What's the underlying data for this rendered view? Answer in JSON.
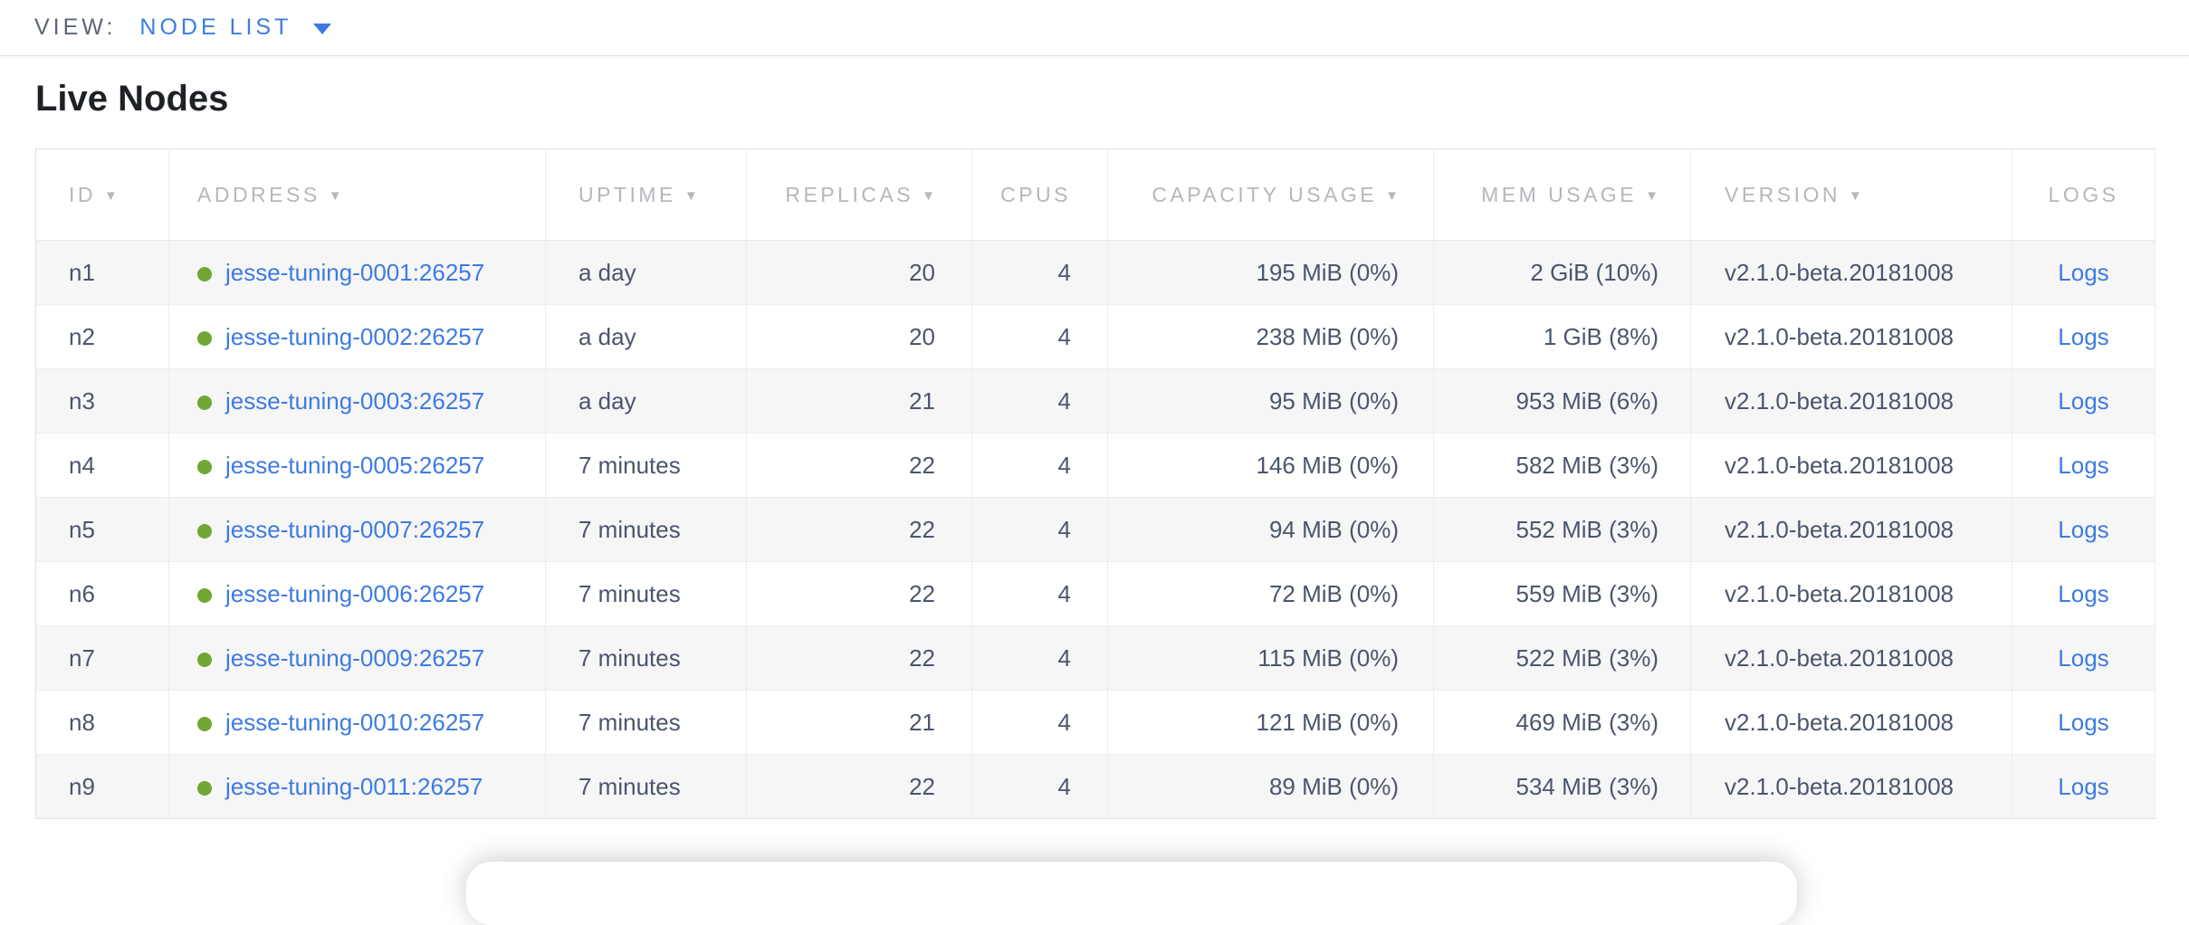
{
  "view_bar": {
    "label": "VIEW:",
    "selected_view": "NODE LIST"
  },
  "page": {
    "title": "Live Nodes"
  },
  "icons": {
    "sort_desc": "▼",
    "dropdown_caret": "▼",
    "node_status": "green-dot"
  },
  "colors": {
    "accent_blue": "#3d7be2",
    "status_green": "#71a634",
    "header_gray": "#b4b7bc",
    "body_text": "#4b556c",
    "stripe_bg": "#f6f6f7"
  },
  "table": {
    "columns": [
      {
        "key": "id",
        "label": "ID",
        "sortable": true,
        "align": "left"
      },
      {
        "key": "address",
        "label": "ADDRESS",
        "sortable": true,
        "align": "left"
      },
      {
        "key": "uptime",
        "label": "UPTIME",
        "sortable": true,
        "align": "left"
      },
      {
        "key": "replicas",
        "label": "REPLICAS",
        "sortable": true,
        "align": "right"
      },
      {
        "key": "cpus",
        "label": "CPUS",
        "sortable": false,
        "align": "right"
      },
      {
        "key": "capacity",
        "label": "CAPACITY USAGE",
        "sortable": true,
        "align": "right"
      },
      {
        "key": "mem",
        "label": "MEM USAGE",
        "sortable": true,
        "align": "right"
      },
      {
        "key": "version",
        "label": "VERSION",
        "sortable": true,
        "align": "left"
      },
      {
        "key": "logs",
        "label": "LOGS",
        "sortable": false,
        "align": "center"
      }
    ],
    "rows": [
      {
        "id": "n1",
        "address": "jesse-tuning-0001:26257",
        "uptime": "a day",
        "replicas": "20",
        "cpus": "4",
        "capacity": "195 MiB (0%)",
        "mem": "2 GiB (10%)",
        "version": "v2.1.0-beta.20181008",
        "logs": "Logs"
      },
      {
        "id": "n2",
        "address": "jesse-tuning-0002:26257",
        "uptime": "a day",
        "replicas": "20",
        "cpus": "4",
        "capacity": "238 MiB (0%)",
        "mem": "1 GiB (8%)",
        "version": "v2.1.0-beta.20181008",
        "logs": "Logs"
      },
      {
        "id": "n3",
        "address": "jesse-tuning-0003:26257",
        "uptime": "a day",
        "replicas": "21",
        "cpus": "4",
        "capacity": "95 MiB (0%)",
        "mem": "953 MiB (6%)",
        "version": "v2.1.0-beta.20181008",
        "logs": "Logs"
      },
      {
        "id": "n4",
        "address": "jesse-tuning-0005:26257",
        "uptime": "7 minutes",
        "replicas": "22",
        "cpus": "4",
        "capacity": "146 MiB (0%)",
        "mem": "582 MiB (3%)",
        "version": "v2.1.0-beta.20181008",
        "logs": "Logs"
      },
      {
        "id": "n5",
        "address": "jesse-tuning-0007:26257",
        "uptime": "7 minutes",
        "replicas": "22",
        "cpus": "4",
        "capacity": "94 MiB (0%)",
        "mem": "552 MiB (3%)",
        "version": "v2.1.0-beta.20181008",
        "logs": "Logs"
      },
      {
        "id": "n6",
        "address": "jesse-tuning-0006:26257",
        "uptime": "7 minutes",
        "replicas": "22",
        "cpus": "4",
        "capacity": "72 MiB (0%)",
        "mem": "559 MiB (3%)",
        "version": "v2.1.0-beta.20181008",
        "logs": "Logs"
      },
      {
        "id": "n7",
        "address": "jesse-tuning-0009:26257",
        "uptime": "7 minutes",
        "replicas": "22",
        "cpus": "4",
        "capacity": "115 MiB (0%)",
        "mem": "522 MiB (3%)",
        "version": "v2.1.0-beta.20181008",
        "logs": "Logs"
      },
      {
        "id": "n8",
        "address": "jesse-tuning-0010:26257",
        "uptime": "7 minutes",
        "replicas": "21",
        "cpus": "4",
        "capacity": "121 MiB (0%)",
        "mem": "469 MiB (3%)",
        "version": "v2.1.0-beta.20181008",
        "logs": "Logs"
      },
      {
        "id": "n9",
        "address": "jesse-tuning-0011:26257",
        "uptime": "7 minutes",
        "replicas": "22",
        "cpus": "4",
        "capacity": "89 MiB (0%)",
        "mem": "534 MiB (3%)",
        "version": "v2.1.0-beta.20181008",
        "logs": "Logs"
      }
    ]
  }
}
